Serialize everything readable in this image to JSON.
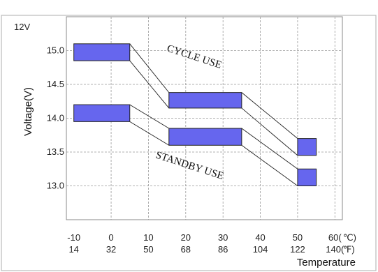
{
  "chart_data": {
    "type": "area",
    "ylabel": "Voltage(V)",
    "y_unit_label": "12V",
    "xlabel": "Temperature",
    "ylim": [
      12.5,
      15.5
    ],
    "xlim": [
      -12,
      62
    ],
    "y_ticks": [
      {
        "value": 15.0,
        "label": "15.0"
      },
      {
        "value": 14.5,
        "label": "14.5"
      },
      {
        "value": 14.0,
        "label": "14.0"
      },
      {
        "value": 13.5,
        "label": "13.5"
      },
      {
        "value": 13.0,
        "label": "13.0"
      }
    ],
    "x_ticks_celsius": [
      {
        "value": -10,
        "label": "-10"
      },
      {
        "value": 0,
        "label": "0"
      },
      {
        "value": 10,
        "label": "10"
      },
      {
        "value": 20,
        "label": "20"
      },
      {
        "value": 30,
        "label": "30"
      },
      {
        "value": 40,
        "label": "40"
      },
      {
        "value": 50,
        "label": "50"
      },
      {
        "value": 60,
        "label": "60("
      }
    ],
    "celsius_unit": "℃)",
    "x_ticks_fahrenheit": [
      {
        "value": -10,
        "label": "14"
      },
      {
        "value": 0,
        "label": "32"
      },
      {
        "value": 10,
        "label": "50"
      },
      {
        "value": 20,
        "label": "68"
      },
      {
        "value": 30,
        "label": "86"
      },
      {
        "value": 40,
        "label": "104"
      },
      {
        "value": 50,
        "label": "122"
      },
      {
        "value": 60,
        "label": "140("
      }
    ],
    "fahrenheit_unit": "℉)",
    "grid": true,
    "series": [
      {
        "name": "CYCLE USE",
        "color": "#6666ee",
        "segments": [
          {
            "x0": -10,
            "x1": 5,
            "ylow": 14.85,
            "yhigh": 15.1
          },
          {
            "x0": 15.5,
            "x1": 35,
            "ylow": 14.15,
            "yhigh": 14.38
          },
          {
            "x0": 50,
            "x1": 55,
            "ylow": 13.45,
            "yhigh": 13.7
          }
        ]
      },
      {
        "name": "STANDBY USE",
        "color": "#6666ee",
        "segments": [
          {
            "x0": -10,
            "x1": 5,
            "ylow": 13.95,
            "yhigh": 14.2
          },
          {
            "x0": 15.5,
            "x1": 35,
            "ylow": 13.6,
            "yhigh": 13.85
          },
          {
            "x0": 50,
            "x1": 55,
            "ylow": 13.0,
            "yhigh": 13.25
          }
        ]
      }
    ]
  }
}
